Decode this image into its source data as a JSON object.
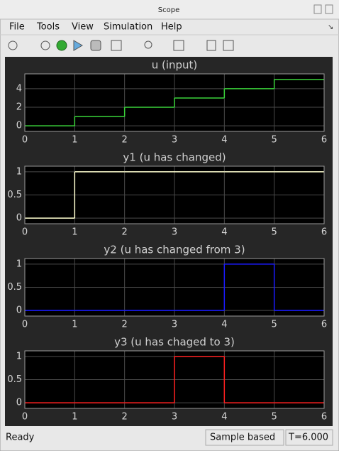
{
  "window": {
    "title": "Scope"
  },
  "menu": [
    "File",
    "Tools",
    "View",
    "Simulation",
    "Help"
  ],
  "chart_data": [
    {
      "type": "line",
      "title": "u (input)",
      "drawstyle": "steps-post",
      "grid": true,
      "x": [
        0,
        1,
        2,
        3,
        4,
        5,
        6
      ],
      "xlim": [
        0,
        6
      ],
      "xticks": [
        0,
        1,
        2,
        3,
        4,
        5,
        6
      ],
      "ylim": [
        -0.6,
        5.6
      ],
      "yticks": [
        0,
        2,
        4
      ],
      "series": [
        {
          "name": "u",
          "color": "#3ad23a",
          "values": [
            0,
            1,
            2,
            3,
            4,
            5,
            5
          ]
        }
      ]
    },
    {
      "type": "line",
      "title": "y1 (u has changed)",
      "drawstyle": "steps-post",
      "grid": true,
      "x": [
        0,
        1,
        2,
        3,
        4,
        5,
        6
      ],
      "xlim": [
        0,
        6
      ],
      "xticks": [
        0,
        1,
        2,
        3,
        4,
        5,
        6
      ],
      "ylim": [
        -0.12,
        1.12
      ],
      "yticks": [
        0,
        0.5,
        1
      ],
      "series": [
        {
          "name": "y1",
          "color": "#ffffd0",
          "values": [
            0,
            1,
            1,
            1,
            1,
            1,
            1
          ]
        }
      ]
    },
    {
      "type": "line",
      "title": "y2 (u has changed from 3)",
      "drawstyle": "steps-post",
      "grid": true,
      "x": [
        0,
        1,
        2,
        3,
        4,
        5,
        6
      ],
      "xlim": [
        0,
        6
      ],
      "xticks": [
        0,
        1,
        2,
        3,
        4,
        5,
        6
      ],
      "ylim": [
        -0.12,
        1.12
      ],
      "yticks": [
        0,
        0.5,
        1
      ],
      "series": [
        {
          "name": "y2",
          "color": "#1a1aff",
          "values": [
            0,
            0,
            0,
            0,
            1,
            0,
            0
          ]
        }
      ]
    },
    {
      "type": "line",
      "title": "y3 (u has chaged to 3)",
      "drawstyle": "steps-post",
      "grid": true,
      "x": [
        0,
        1,
        2,
        3,
        4,
        5,
        6
      ],
      "xlim": [
        0,
        6
      ],
      "xticks": [
        0,
        1,
        2,
        3,
        4,
        5,
        6
      ],
      "ylim": [
        -0.12,
        1.12
      ],
      "yticks": [
        0,
        0.5,
        1
      ],
      "series": [
        {
          "name": "y3",
          "color": "#ff2020",
          "values": [
            0,
            0,
            0,
            1,
            0,
            0,
            0
          ]
        }
      ]
    }
  ],
  "status": {
    "state": "Ready",
    "mode": "Sample based",
    "time": "T=6.000"
  }
}
